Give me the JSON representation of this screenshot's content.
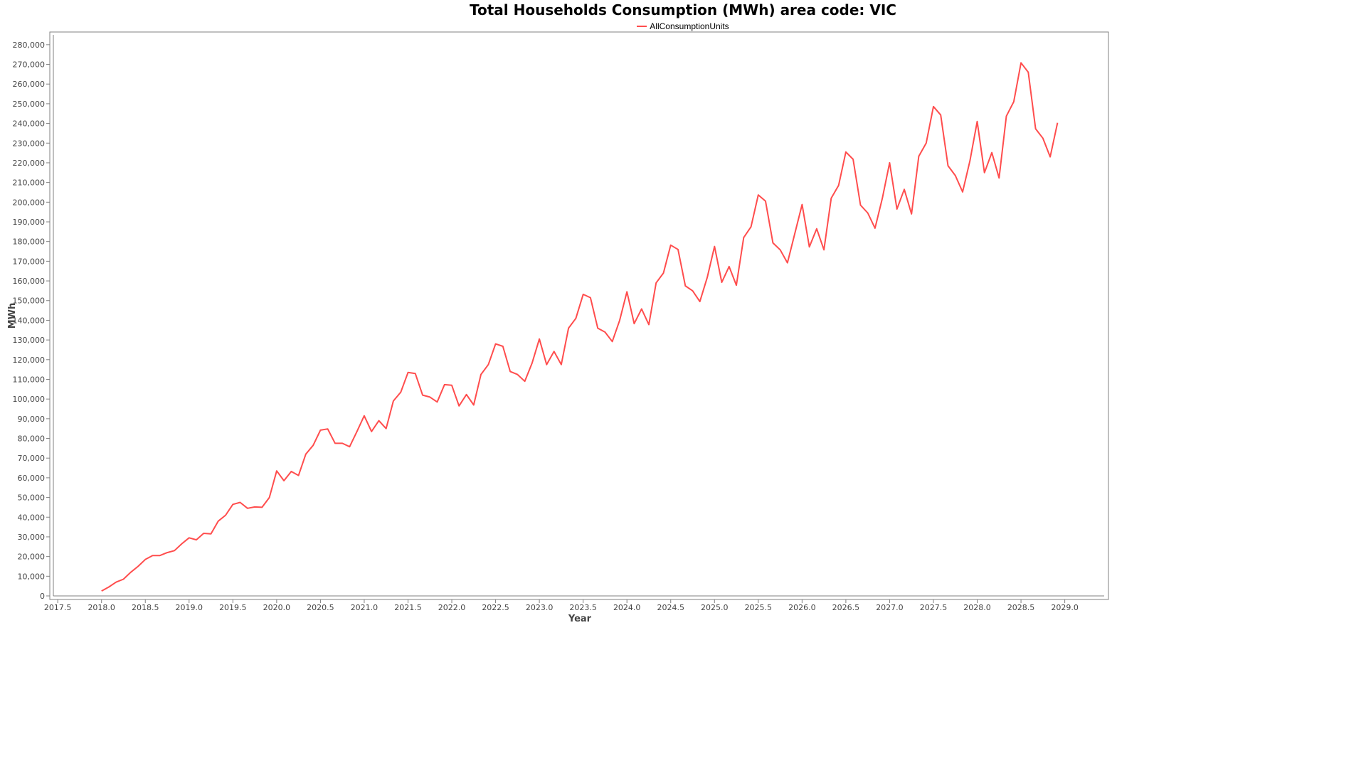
{
  "chart_data": {
    "type": "line",
    "title": "Total Households Consumption (MWh) area code: VIC",
    "xlabel": "Year",
    "ylabel": "MWh",
    "xlim": [
      2017.45,
      2029.45
    ],
    "ylim": [
      0,
      285000
    ],
    "grid": false,
    "legend_position": "top-center",
    "x_ticks": [
      2017.5,
      2018.0,
      2018.5,
      2019.0,
      2019.5,
      2020.0,
      2020.5,
      2021.0,
      2021.5,
      2022.0,
      2022.5,
      2023.0,
      2023.5,
      2024.0,
      2024.5,
      2025.0,
      2025.5,
      2026.0,
      2026.5,
      2027.0,
      2027.5,
      2028.0,
      2028.5,
      2029.0
    ],
    "x_tick_labels": [
      "2017.5",
      "2018.0",
      "2018.5",
      "2019.0",
      "2019.5",
      "2020.0",
      "2020.5",
      "2021.0",
      "2021.5",
      "2022.0",
      "2022.5",
      "2023.0",
      "2023.5",
      "2024.0",
      "2024.5",
      "2025.0",
      "2025.5",
      "2026.0",
      "2026.5",
      "2027.0",
      "2027.5",
      "2028.0",
      "2028.5",
      "2029.0"
    ],
    "y_ticks": [
      0,
      10000,
      20000,
      30000,
      40000,
      50000,
      60000,
      70000,
      80000,
      90000,
      100000,
      110000,
      120000,
      130000,
      140000,
      150000,
      160000,
      170000,
      180000,
      190000,
      200000,
      210000,
      220000,
      230000,
      240000,
      250000,
      260000,
      270000,
      280000
    ],
    "y_tick_labels": [
      "0",
      "10,000",
      "20,000",
      "30,000",
      "40,000",
      "50,000",
      "60,000",
      "70,000",
      "80,000",
      "90,000",
      "100,000",
      "110,000",
      "120,000",
      "130,000",
      "140,000",
      "150,000",
      "160,000",
      "170,000",
      "180,000",
      "190,000",
      "200,000",
      "210,000",
      "220,000",
      "230,000",
      "240,000",
      "250,000",
      "260,000",
      "270,000",
      "280,000"
    ],
    "series": [
      {
        "name": "AllConsumptionUnits",
        "color": "#ff4d4d",
        "x": [
          2018.0,
          2018.083,
          2018.167,
          2018.25,
          2018.333,
          2018.417,
          2018.5,
          2018.583,
          2018.667,
          2018.75,
          2018.833,
          2018.917,
          2019.0,
          2019.083,
          2019.167,
          2019.25,
          2019.333,
          2019.417,
          2019.5,
          2019.583,
          2019.667,
          2019.75,
          2019.833,
          2019.917,
          2020.0,
          2020.083,
          2020.167,
          2020.25,
          2020.333,
          2020.417,
          2020.5,
          2020.583,
          2020.667,
          2020.75,
          2020.833,
          2020.917,
          2021.0,
          2021.083,
          2021.167,
          2021.25,
          2021.333,
          2021.417,
          2021.5,
          2021.583,
          2021.667,
          2021.75,
          2021.833,
          2021.917,
          2022.0,
          2022.083,
          2022.167,
          2022.25,
          2022.333,
          2022.417,
          2022.5,
          2022.583,
          2022.667,
          2022.75,
          2022.833,
          2022.917,
          2023.0,
          2023.083,
          2023.167,
          2023.25,
          2023.333,
          2023.417,
          2023.5,
          2023.583,
          2023.667,
          2023.75,
          2023.833,
          2023.917,
          2024.0,
          2024.083,
          2024.167,
          2024.25,
          2024.333,
          2024.417,
          2024.5,
          2024.583,
          2024.667,
          2024.75,
          2024.833,
          2024.917,
          2025.0,
          2025.083,
          2025.167,
          2025.25,
          2025.333,
          2025.417,
          2025.5,
          2025.583,
          2025.667,
          2025.75,
          2025.833,
          2025.917,
          2026.0,
          2026.083,
          2026.167,
          2026.25,
          2026.333,
          2026.417,
          2026.5,
          2026.583,
          2026.667,
          2026.75,
          2026.833,
          2026.917,
          2027.0,
          2027.083,
          2027.167,
          2027.25,
          2027.333,
          2027.417,
          2027.5,
          2027.583,
          2027.667,
          2027.75,
          2027.833,
          2027.917,
          2028.0,
          2028.083,
          2028.167,
          2028.25,
          2028.333,
          2028.417,
          2028.5,
          2028.583,
          2028.667,
          2028.75,
          2028.833,
          2028.917
        ],
        "y": [
          2500,
          4500,
          7000,
          8500,
          12000,
          15000,
          18500,
          20500,
          20500,
          22000,
          23000,
          26500,
          29500,
          28500,
          31800,
          31500,
          38000,
          41000,
          46500,
          47500,
          44500,
          45200,
          45000,
          50000,
          63500,
          58500,
          63200,
          61200,
          72000,
          76500,
          84200,
          84800,
          77500,
          77500,
          75800,
          83500,
          91500,
          83500,
          89000,
          85000,
          99000,
          103500,
          113500,
          113000,
          102000,
          101000,
          98500,
          107300,
          107000,
          96500,
          102300,
          97000,
          112500,
          117500,
          128000,
          126800,
          114000,
          112500,
          109000,
          118300,
          130500,
          117500,
          124200,
          117500,
          136000,
          141000,
          153200,
          151500,
          136000,
          134000,
          129200,
          140000,
          154500,
          138300,
          145800,
          137800,
          159000,
          164000,
          178200,
          176000,
          157500,
          155000,
          149500,
          161800,
          177500,
          159300,
          167300,
          157800,
          182000,
          187500,
          203700,
          200500,
          179300,
          175800,
          169200,
          184000,
          198800,
          177300,
          186500,
          175800,
          202000,
          208500,
          225500,
          221800,
          198500,
          194500,
          186800,
          202000,
          220000,
          196500,
          206500,
          194000,
          223300,
          230000,
          248600,
          244300,
          218500,
          213500,
          205200,
          221000,
          241000,
          215000,
          225200,
          212300,
          243700,
          251000,
          270800,
          266000,
          237300,
          232500,
          223000,
          240300
        ]
      }
    ]
  }
}
